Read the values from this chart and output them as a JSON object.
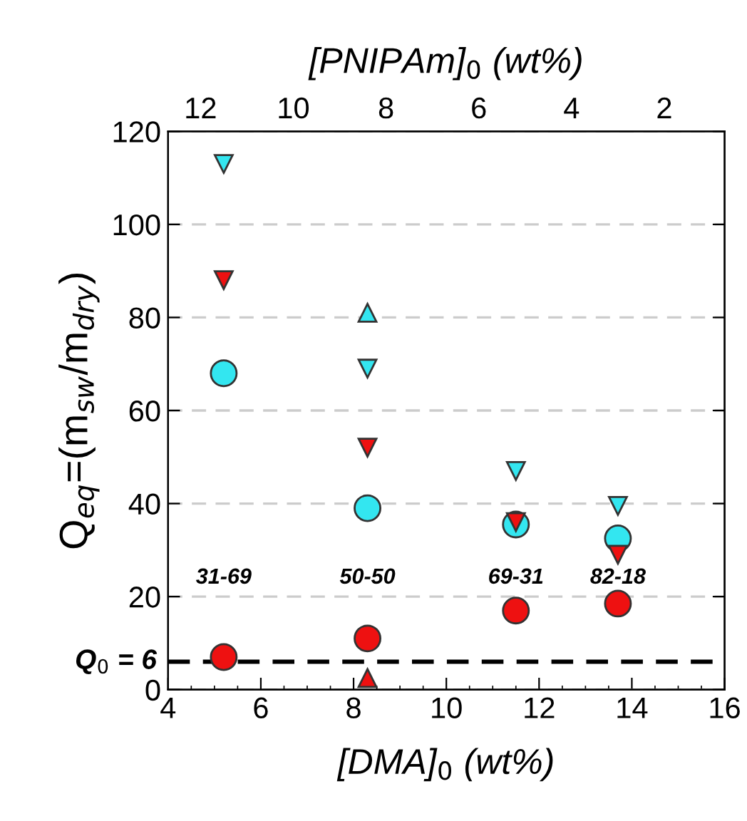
{
  "chart_data": {
    "type": "scatter",
    "xlabel": "[DMA]$_{0}$ (wt%)",
    "ylabel": "Q$_{eq}$=(m$_{sw}$/m$_{dry}$)",
    "x2label": "[PNIPAm]$_{0}$ (wt%)",
    "x": [
      5.2,
      8.3,
      11.5,
      13.7
    ],
    "series": [
      {
        "color": "#33e6f0",
        "marker": "triangle_down",
        "values": [
          113,
          69,
          47,
          39.5
        ]
      },
      {
        "color": "#ee1111",
        "marker": "triangle_down",
        "values": [
          88,
          52,
          36,
          29
        ]
      },
      {
        "color": "#33e6f0",
        "marker": "circle",
        "values": [
          68,
          39,
          35.5,
          32.5
        ]
      },
      {
        "color": "#ee1111",
        "marker": "circle",
        "values": [
          7,
          11,
          17,
          18.5
        ]
      },
      {
        "color": "#33e6f0",
        "marker": "triangle",
        "x": [
          8.3
        ],
        "values": [
          81
        ]
      },
      {
        "color": "#ee1111",
        "marker": "triangle",
        "x": [
          8.3
        ],
        "values": [
          2.5
        ]
      }
    ],
    "xlim": [
      4,
      16
    ],
    "xticks": [
      4,
      6,
      8,
      10,
      12,
      14,
      16
    ],
    "x2lim": [
      12.7,
      0.7
    ],
    "x2ticks": [
      12,
      10,
      8,
      6,
      4,
      2
    ],
    "ylim": [
      0,
      120
    ],
    "yticks": [
      0,
      20,
      40,
      60,
      80,
      100,
      120
    ],
    "grid": "y",
    "ref_lines": [
      {
        "axis": "y",
        "value": 6,
        "label": "Q$_{0}$ = 6",
        "color": "#000000",
        "line_style": "dashed"
      }
    ],
    "annotations": [
      "31-69",
      "50-50",
      "69-31",
      "82-18"
    ]
  }
}
